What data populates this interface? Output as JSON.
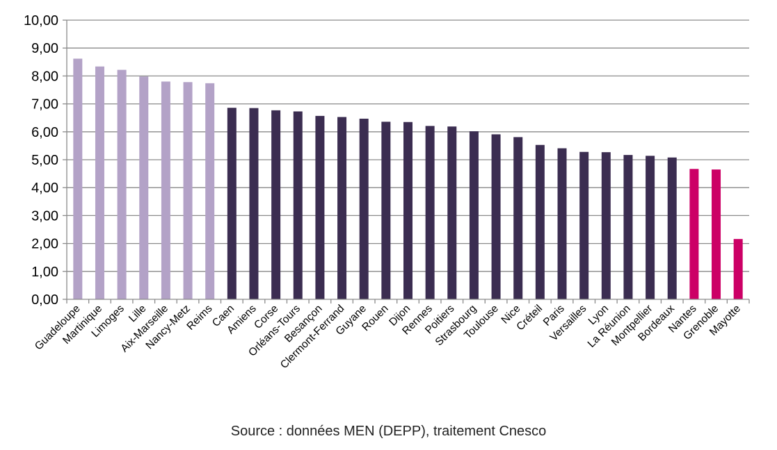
{
  "source": "Source : données MEN (DEPP), traitement Cnesco",
  "chart_data": {
    "type": "bar",
    "title": "",
    "xlabel": "",
    "ylabel": "",
    "ylim": [
      0,
      10
    ],
    "y_ticks": [
      "0,00",
      "1,00",
      "2,00",
      "3,00",
      "4,00",
      "5,00",
      "6,00",
      "7,00",
      "8,00",
      "9,00",
      "10,00"
    ],
    "grid": true,
    "legend": "none",
    "colors": {
      "high": "#b3a2c7",
      "mid": "#3b2d51",
      "low": "#cc0066",
      "grid": "#8a8a8a"
    },
    "categories": [
      "Guadeloupe",
      "Martinique",
      "Limoges",
      "Lille",
      "Aix-Marseille",
      "Nancy-Metz",
      "Reims",
      "Caen",
      "Amiens",
      "Corse",
      "Orléans-Tours",
      "Besançon",
      "Clermont-Ferrand",
      "Guyane",
      "Rouen",
      "Dijon",
      "Rennes",
      "Poitiers",
      "Strasbourg",
      "Toulouse",
      "Nice",
      "Créteil",
      "Paris",
      "Versailles",
      "Lyon",
      "La Réunion",
      "Montpellier",
      "Bordeaux",
      "Nantes",
      "Grenoble",
      "Mayotte"
    ],
    "values": [
      8.62,
      8.34,
      8.22,
      7.98,
      7.8,
      7.78,
      7.74,
      6.86,
      6.85,
      6.77,
      6.73,
      6.57,
      6.53,
      6.47,
      6.36,
      6.35,
      6.21,
      6.19,
      6.02,
      5.91,
      5.81,
      5.53,
      5.41,
      5.28,
      5.27,
      5.17,
      5.14,
      5.08,
      4.67,
      4.65,
      2.16
    ],
    "groups": [
      "high",
      "high",
      "high",
      "high",
      "high",
      "high",
      "high",
      "mid",
      "mid",
      "mid",
      "mid",
      "mid",
      "mid",
      "mid",
      "mid",
      "mid",
      "mid",
      "mid",
      "mid",
      "mid",
      "mid",
      "mid",
      "mid",
      "mid",
      "mid",
      "mid",
      "mid",
      "mid",
      "low",
      "low",
      "low"
    ]
  }
}
